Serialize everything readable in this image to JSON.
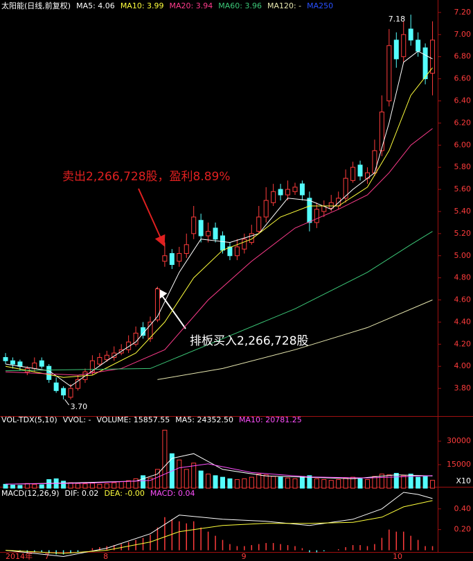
{
  "chart_data": [
    {
      "type": "candlestick",
      "title": "太阳能(日线,前复权)",
      "up_color": "#ff3c3c",
      "down_color": "#54fcfc",
      "open": [
        4.08,
        4.05,
        4.04,
        3.95,
        3.98,
        4.05,
        4.0,
        3.85,
        3.8,
        3.72,
        3.8,
        3.88,
        3.95,
        4.02,
        4.06,
        4.08,
        4.12,
        4.15,
        4.2,
        4.35,
        4.25,
        4.42,
        4.95,
        5.02,
        4.95,
        5.02,
        5.2,
        5.32,
        5.18,
        5.25,
        5.18,
        5.08,
        5.0,
        5.06,
        5.12,
        5.22,
        5.35,
        5.48,
        5.6,
        5.55,
        5.58,
        5.65,
        5.52,
        5.3,
        5.4,
        5.43,
        5.45,
        5.52,
        5.68,
        5.82,
        5.7,
        5.75,
        5.95,
        6.4,
        6.95,
        6.8,
        7.05,
        6.95,
        6.88,
        6.65
      ],
      "high": [
        4.12,
        4.08,
        4.06,
        4.0,
        4.08,
        4.08,
        4.02,
        3.9,
        3.82,
        3.84,
        3.92,
        3.98,
        4.1,
        4.12,
        4.14,
        4.18,
        4.2,
        4.28,
        4.36,
        4.4,
        4.45,
        4.72,
        5.12,
        5.06,
        5.08,
        5.2,
        5.45,
        5.38,
        5.3,
        5.3,
        5.22,
        5.12,
        5.15,
        5.2,
        5.28,
        5.45,
        5.62,
        5.65,
        5.65,
        5.68,
        5.66,
        5.68,
        5.58,
        5.48,
        5.5,
        5.55,
        5.58,
        5.78,
        5.85,
        5.86,
        5.8,
        6.05,
        6.45,
        7.05,
        7.02,
        7.12,
        7.18,
        7.02,
        6.92,
        7.12
      ],
      "low": [
        4.02,
        3.98,
        3.96,
        3.92,
        3.95,
        3.98,
        3.85,
        3.76,
        3.7,
        3.7,
        3.78,
        3.85,
        3.92,
        4.0,
        4.04,
        4.05,
        4.1,
        4.12,
        4.18,
        4.25,
        4.22,
        4.4,
        4.9,
        4.88,
        4.9,
        4.98,
        5.15,
        5.12,
        5.12,
        5.12,
        5.02,
        4.96,
        4.96,
        5.02,
        5.1,
        5.2,
        5.3,
        5.45,
        5.5,
        5.5,
        5.55,
        5.5,
        5.22,
        5.25,
        5.35,
        5.4,
        5.42,
        5.48,
        5.66,
        5.68,
        5.65,
        5.72,
        5.9,
        6.35,
        6.7,
        6.75,
        6.9,
        6.8,
        6.55,
        6.45
      ],
      "close": [
        4.05,
        4.02,
        4.0,
        3.98,
        4.03,
        4.0,
        3.88,
        3.78,
        3.74,
        3.8,
        3.88,
        3.95,
        4.05,
        4.08,
        4.1,
        4.12,
        4.15,
        4.22,
        4.3,
        4.28,
        4.4,
        4.7,
        5.0,
        4.92,
        5.02,
        5.1,
        5.35,
        5.18,
        5.22,
        5.15,
        5.05,
        5.0,
        5.08,
        5.15,
        5.2,
        5.35,
        5.5,
        5.58,
        5.55,
        5.6,
        5.62,
        5.55,
        5.3,
        5.42,
        5.45,
        5.48,
        5.52,
        5.7,
        5.8,
        5.72,
        5.75,
        5.95,
        6.3,
        6.9,
        6.78,
        7.0,
        6.95,
        6.85,
        6.6,
        6.95
      ],
      "lines": [
        {
          "label": "MA5: 4.06",
          "color": "#ffffff",
          "x": [
            0,
            6,
            9,
            14,
            18,
            21,
            24,
            27,
            31,
            35,
            39,
            42,
            45,
            48,
            51,
            53,
            55,
            57,
            59
          ],
          "values": [
            4.02,
            3.96,
            3.82,
            4.05,
            4.22,
            4.45,
            4.85,
            5.15,
            5.12,
            5.2,
            5.52,
            5.5,
            5.42,
            5.6,
            5.75,
            6.2,
            6.75,
            6.85,
            6.78
          ]
        },
        {
          "label": "MA10: 3.99",
          "color": "#ffff3c",
          "x": [
            0,
            8,
            12,
            18,
            22,
            26,
            30,
            34,
            38,
            42,
            46,
            50,
            53,
            56,
            59
          ],
          "values": [
            4.0,
            3.9,
            3.92,
            4.12,
            4.4,
            4.8,
            5.05,
            5.15,
            5.35,
            5.45,
            5.45,
            5.62,
            5.95,
            6.45,
            6.7
          ]
        },
        {
          "label": "MA20: 3.94",
          "color": "#ff3c8c",
          "x": [
            0,
            10,
            16,
            22,
            28,
            34,
            40,
            46,
            50,
            53,
            56,
            59
          ],
          "values": [
            3.95,
            3.92,
            3.98,
            4.15,
            4.6,
            4.95,
            5.25,
            5.42,
            5.55,
            5.75,
            6.0,
            6.15
          ]
        },
        {
          "label": "MA60: 3.96",
          "color": "#3cc878",
          "x": [
            0,
            20,
            30,
            40,
            50,
            56,
            59
          ],
          "values": [
            3.96,
            3.98,
            4.25,
            4.52,
            4.85,
            5.1,
            5.22
          ]
        },
        {
          "label": "MA120: -",
          "color": "#e8e8b0",
          "x": [
            21,
            30,
            40,
            50,
            59
          ],
          "values": [
            3.88,
            3.98,
            4.15,
            4.35,
            4.6
          ]
        }
      ],
      "extra_legend": {
        "label": "MA250",
        "color": "#2850ff"
      },
      "ylim": [
        3.6,
        7.3
      ],
      "yticks": [
        {
          "value": 3.8,
          "label": "3.80"
        },
        {
          "value": 4.0,
          "label": "4.00"
        },
        {
          "value": 4.2,
          "label": "4.20"
        },
        {
          "value": 4.4,
          "label": "4.40"
        },
        {
          "value": 4.6,
          "label": "4.60"
        },
        {
          "value": 4.8,
          "label": "4.80"
        },
        {
          "value": 5.0,
          "label": "5.00"
        },
        {
          "value": 5.2,
          "label": "5.20"
        },
        {
          "value": 5.4,
          "label": "5.40"
        },
        {
          "value": 5.6,
          "label": "5.60"
        },
        {
          "value": 5.8,
          "label": "5.80"
        },
        {
          "value": 6.0,
          "label": "6.00"
        },
        {
          "value": 6.2,
          "label": "6.20"
        },
        {
          "value": 6.4,
          "label": "6.40"
        },
        {
          "value": 6.6,
          "label": "6.60"
        },
        {
          "value": 6.8,
          "label": "6.80"
        },
        {
          "value": 7.0,
          "label": "7.00"
        },
        {
          "value": 7.2,
          "label": "7.20"
        }
      ],
      "annotations": [
        "卖出2,266,728股，盈利8.89%",
        "排板买入2,266,728股",
        "3.70",
        "7.18"
      ],
      "x_labels": [
        {
          "index": 0,
          "label": "2014年"
        },
        {
          "index": 5.4,
          "label": "7"
        },
        {
          "index": 13.5,
          "label": "8"
        },
        {
          "index": 32.6,
          "label": "9"
        },
        {
          "index": 53.5,
          "label": "10"
        }
      ]
    },
    {
      "type": "volume",
      "title": "VOL-TDX(5,10)",
      "legend": [
        {
          "label": "VVOL: -",
          "color": "#ffffff"
        },
        {
          "label": "VOLUME: 15857.55",
          "color": "#ffffff"
        }
      ],
      "values": [
        2500,
        2000,
        1800,
        3000,
        2500,
        2200,
        5500,
        6000,
        4500,
        3500,
        3000,
        2800,
        3200,
        2500,
        2800,
        3500,
        4200,
        4800,
        6000,
        8000,
        6500,
        12000,
        37000,
        22000,
        18000,
        12000,
        16000,
        11000,
        9000,
        8000,
        7000,
        6000,
        5500,
        6000,
        7000,
        9000,
        8500,
        7500,
        7000,
        6500,
        6000,
        7500,
        8000,
        6000,
        5500,
        5000,
        5500,
        6500,
        7000,
        6000,
        5500,
        7500,
        9000,
        8500,
        9500,
        8000,
        9000,
        7000,
        7500,
        5000
      ],
      "lines": [
        {
          "label": "MA5: 24352.50",
          "color": "#ffffff",
          "x": [
            0,
            10,
            18,
            21,
            23,
            26,
            30,
            36,
            42,
            48,
            54,
            59
          ],
          "values": [
            2500,
            3500,
            4500,
            9000,
            19000,
            22000,
            12000,
            7800,
            7000,
            6000,
            8500,
            7800
          ]
        },
        {
          "label": "MA10: 20781.25",
          "color": "#ff50ff",
          "x": [
            0,
            12,
            20,
            24,
            28,
            34,
            42,
            50,
            59
          ],
          "values": [
            2600,
            3300,
            5000,
            13000,
            15500,
            10000,
            7200,
            6500,
            8000
          ]
        }
      ],
      "ylim": [
        0,
        42000
      ],
      "yticks": [
        15000,
        30000
      ],
      "scale_label": "X10"
    },
    {
      "type": "macd",
      "title": "MACD(12,26,9)",
      "values": [
        0.0,
        -0.01,
        -0.01,
        -0.02,
        -0.02,
        -0.02,
        -0.03,
        -0.04,
        -0.04,
        -0.03,
        -0.02,
        0.0,
        0.02,
        0.03,
        0.04,
        0.05,
        0.06,
        0.08,
        0.1,
        0.12,
        0.15,
        0.22,
        0.32,
        0.3,
        0.28,
        0.26,
        0.28,
        0.22,
        0.18,
        0.14,
        0.1,
        0.06,
        0.04,
        0.04,
        0.05,
        0.06,
        0.07,
        0.07,
        0.06,
        0.05,
        0.04,
        0.02,
        -0.02,
        -0.02,
        -0.01,
        0.0,
        0.01,
        0.03,
        0.05,
        0.05,
        0.04,
        0.06,
        0.12,
        0.2,
        0.18,
        0.18,
        0.14,
        0.1,
        0.04,
        0.04
      ],
      "lines": [
        {
          "label": "DIF: 0.02",
          "color": "#ffffff",
          "x": [
            0,
            8,
            14,
            20,
            24,
            30,
            36,
            42,
            48,
            52,
            55,
            57,
            59
          ],
          "values": [
            0.0,
            -0.06,
            0.02,
            0.16,
            0.34,
            0.3,
            0.28,
            0.24,
            0.3,
            0.4,
            0.56,
            0.54,
            0.5
          ]
        },
        {
          "label": "DEA: -0.00",
          "color": "#ffff3c",
          "x": [
            0,
            8,
            14,
            20,
            24,
            30,
            36,
            42,
            48,
            52,
            55,
            59
          ],
          "values": [
            0.0,
            -0.03,
            0.0,
            0.08,
            0.18,
            0.24,
            0.26,
            0.26,
            0.27,
            0.32,
            0.42,
            0.48
          ]
        }
      ],
      "bar_legend": [
        {
          "label": "MACD: 0.04",
          "color": "#ff50ff"
        }
      ],
      "ylim": [
        -0.03,
        0.6
      ],
      "yticks": [
        {
          "value": 0.2,
          "label": "0.20"
        },
        {
          "value": 0.4,
          "label": "0.40"
        }
      ]
    }
  ]
}
